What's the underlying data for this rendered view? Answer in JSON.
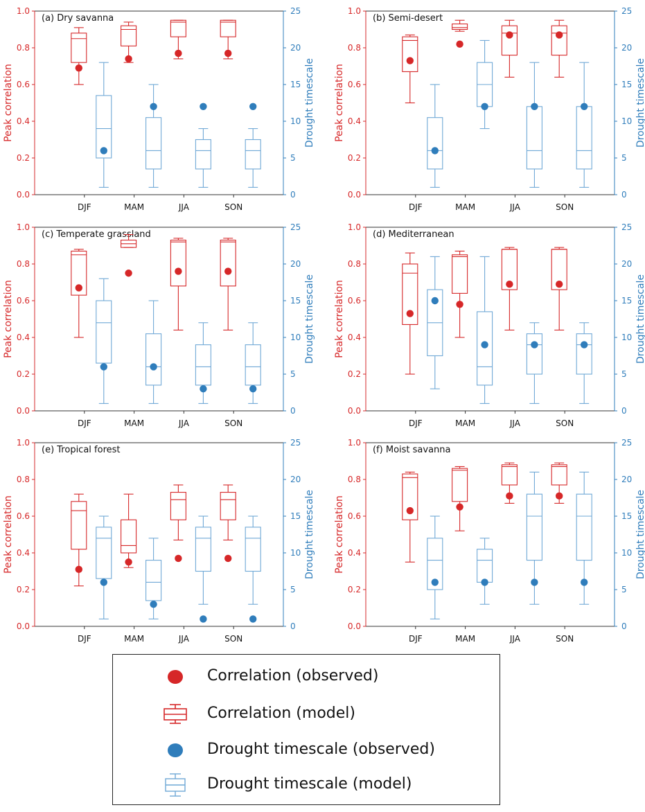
{
  "colors": {
    "correlation": "#d62728",
    "timescale": "#2f7dbb",
    "axis": "#333333"
  },
  "axis_labels": {
    "left": "Peak correlation",
    "right": "Drought timescale"
  },
  "ticks": {
    "left": [
      "0.0",
      "0.2",
      "0.4",
      "0.6",
      "0.8",
      "1.0"
    ],
    "right": [
      "0",
      "5",
      "10",
      "15",
      "20",
      "25"
    ]
  },
  "legend": {
    "corr_obs": "Correlation (observed)",
    "corr_model": "Correlation (model)",
    "ts_obs": "Drought timescale (observed)",
    "ts_model": "Drought timescale (model)"
  },
  "chart_data": [
    {
      "type": "box",
      "title": "(a) Dry savanna",
      "categories": [
        "DJF",
        "MAM",
        "JJA",
        "SON"
      ],
      "ylim_left": [
        0,
        1
      ],
      "ylim_right": [
        0,
        25
      ],
      "correlation_model": [
        {
          "min": 0.6,
          "q1": 0.72,
          "median": 0.85,
          "q3": 0.88,
          "max": 0.91
        },
        {
          "min": 0.72,
          "q1": 0.81,
          "median": 0.9,
          "q3": 0.92,
          "max": 0.94
        },
        {
          "min": 0.74,
          "q1": 0.86,
          "median": 0.94,
          "q3": 0.95,
          "max": 0.95
        },
        {
          "min": 0.74,
          "q1": 0.86,
          "median": 0.94,
          "q3": 0.95,
          "max": 0.95
        }
      ],
      "correlation_observed": [
        0.69,
        0.74,
        0.77,
        0.77
      ],
      "timescale_model": [
        {
          "min": 1,
          "q1": 5,
          "median": 9,
          "q3": 13.5,
          "max": 18
        },
        {
          "min": 1,
          "q1": 3.5,
          "median": 6,
          "q3": 10.5,
          "max": 15
        },
        {
          "min": 1,
          "q1": 3.5,
          "median": 6,
          "q3": 7.5,
          "max": 9
        },
        {
          "min": 1,
          "q1": 3.5,
          "median": 6,
          "q3": 7.5,
          "max": 9
        }
      ],
      "timescale_observed": [
        6,
        12,
        12,
        12
      ]
    },
    {
      "type": "box",
      "title": "(b) Semi-desert",
      "categories": [
        "DJF",
        "MAM",
        "JJA",
        "SON"
      ],
      "ylim_left": [
        0,
        1
      ],
      "ylim_right": [
        0,
        25
      ],
      "correlation_model": [
        {
          "min": 0.5,
          "q1": 0.67,
          "median": 0.84,
          "q3": 0.86,
          "max": 0.87
        },
        {
          "min": 0.89,
          "q1": 0.9,
          "median": 0.91,
          "q3": 0.93,
          "max": 0.95
        },
        {
          "min": 0.64,
          "q1": 0.76,
          "median": 0.88,
          "q3": 0.92,
          "max": 0.95
        },
        {
          "min": 0.64,
          "q1": 0.76,
          "median": 0.88,
          "q3": 0.92,
          "max": 0.95
        }
      ],
      "correlation_observed": [
        0.73,
        0.82,
        0.87,
        0.87
      ],
      "timescale_model": [
        {
          "min": 1,
          "q1": 3.5,
          "median": 6,
          "q3": 10.5,
          "max": 15
        },
        {
          "min": 9,
          "q1": 12,
          "median": 15,
          "q3": 18,
          "max": 21
        },
        {
          "min": 1,
          "q1": 3.5,
          "median": 6,
          "q3": 12,
          "max": 18
        },
        {
          "min": 1,
          "q1": 3.5,
          "median": 6,
          "q3": 12,
          "max": 18
        }
      ],
      "timescale_observed": [
        6,
        12,
        12,
        12
      ]
    },
    {
      "type": "box",
      "title": "(c) Temperate grassland",
      "categories": [
        "DJF",
        "MAM",
        "JJA",
        "SON"
      ],
      "ylim_left": [
        0,
        1
      ],
      "ylim_right": [
        0,
        25
      ],
      "correlation_model": [
        {
          "min": 0.4,
          "q1": 0.63,
          "median": 0.85,
          "q3": 0.87,
          "max": 0.88
        },
        {
          "min": 0.89,
          "q1": 0.89,
          "median": 0.91,
          "q3": 0.93,
          "max": 0.96
        },
        {
          "min": 0.44,
          "q1": 0.68,
          "median": 0.92,
          "q3": 0.93,
          "max": 0.94
        },
        {
          "min": 0.44,
          "q1": 0.68,
          "median": 0.92,
          "q3": 0.93,
          "max": 0.94
        }
      ],
      "correlation_observed": [
        0.67,
        0.75,
        0.76,
        0.76
      ],
      "timescale_model": [
        {
          "min": 1,
          "q1": 6.5,
          "median": 12,
          "q3": 15,
          "max": 18
        },
        {
          "min": 1,
          "q1": 3.5,
          "median": 6,
          "q3": 10.5,
          "max": 15
        },
        {
          "min": 1,
          "q1": 3.5,
          "median": 6,
          "q3": 9,
          "max": 12
        },
        {
          "min": 1,
          "q1": 3.5,
          "median": 6,
          "q3": 9,
          "max": 12
        }
      ],
      "timescale_observed": [
        6,
        6,
        3,
        3
      ]
    },
    {
      "type": "box",
      "title": "(d) Mediterranean",
      "categories": [
        "DJF",
        "MAM",
        "JJA",
        "SON"
      ],
      "ylim_left": [
        0,
        1
      ],
      "ylim_right": [
        0,
        25
      ],
      "correlation_model": [
        {
          "min": 0.2,
          "q1": 0.47,
          "median": 0.75,
          "q3": 0.8,
          "max": 0.86
        },
        {
          "min": 0.4,
          "q1": 0.64,
          "median": 0.84,
          "q3": 0.85,
          "max": 0.87
        },
        {
          "min": 0.44,
          "q1": 0.66,
          "median": 0.88,
          "q3": 0.88,
          "max": 0.89
        },
        {
          "min": 0.44,
          "q1": 0.66,
          "median": 0.88,
          "q3": 0.88,
          "max": 0.89
        }
      ],
      "correlation_observed": [
        0.53,
        0.58,
        0.69,
        0.69
      ],
      "timescale_model": [
        {
          "min": 3,
          "q1": 7.5,
          "median": 12,
          "q3": 16.5,
          "max": 21
        },
        {
          "min": 1,
          "q1": 3.5,
          "median": 6,
          "q3": 13.5,
          "max": 21
        },
        {
          "min": 1,
          "q1": 5,
          "median": 9,
          "q3": 10.5,
          "max": 12
        },
        {
          "min": 1,
          "q1": 5,
          "median": 9,
          "q3": 10.5,
          "max": 12
        }
      ],
      "timescale_observed": [
        15,
        9,
        9,
        9
      ]
    },
    {
      "type": "box",
      "title": "(e) Tropical forest",
      "categories": [
        "DJF",
        "MAM",
        "JJA",
        "SON"
      ],
      "ylim_left": [
        0,
        1
      ],
      "ylim_right": [
        0,
        25
      ],
      "correlation_model": [
        {
          "min": 0.22,
          "q1": 0.42,
          "median": 0.63,
          "q3": 0.68,
          "max": 0.72
        },
        {
          "min": 0.32,
          "q1": 0.4,
          "median": 0.44,
          "q3": 0.58,
          "max": 0.72
        },
        {
          "min": 0.47,
          "q1": 0.58,
          "median": 0.69,
          "q3": 0.73,
          "max": 0.77
        },
        {
          "min": 0.47,
          "q1": 0.58,
          "median": 0.69,
          "q3": 0.73,
          "max": 0.77
        }
      ],
      "correlation_observed": [
        0.31,
        0.35,
        0.37,
        0.37
      ],
      "timescale_model": [
        {
          "min": 1,
          "q1": 6.5,
          "median": 12,
          "q3": 13.5,
          "max": 15
        },
        {
          "min": 1,
          "q1": 3.5,
          "median": 6,
          "q3": 9,
          "max": 12
        },
        {
          "min": 3,
          "q1": 7.5,
          "median": 12,
          "q3": 13.5,
          "max": 15
        },
        {
          "min": 3,
          "q1": 7.5,
          "median": 12,
          "q3": 13.5,
          "max": 15
        }
      ],
      "timescale_observed": [
        6,
        3,
        1,
        1
      ]
    },
    {
      "type": "box",
      "title": "(f) Moist savanna",
      "categories": [
        "DJF",
        "MAM",
        "JJA",
        "SON"
      ],
      "ylim_left": [
        0,
        1
      ],
      "ylim_right": [
        0,
        25
      ],
      "correlation_model": [
        {
          "min": 0.35,
          "q1": 0.58,
          "median": 0.81,
          "q3": 0.83,
          "max": 0.84
        },
        {
          "min": 0.52,
          "q1": 0.68,
          "median": 0.85,
          "q3": 0.86,
          "max": 0.87
        },
        {
          "min": 0.67,
          "q1": 0.77,
          "median": 0.87,
          "q3": 0.88,
          "max": 0.89
        },
        {
          "min": 0.67,
          "q1": 0.77,
          "median": 0.87,
          "q3": 0.88,
          "max": 0.89
        }
      ],
      "correlation_observed": [
        0.63,
        0.65,
        0.71,
        0.71
      ],
      "timescale_model": [
        {
          "min": 1,
          "q1": 5,
          "median": 9,
          "q3": 12,
          "max": 15
        },
        {
          "min": 3,
          "q1": 6,
          "median": 9,
          "q3": 10.5,
          "max": 12
        },
        {
          "min": 3,
          "q1": 9,
          "median": 15,
          "q3": 18,
          "max": 21
        },
        {
          "min": 3,
          "q1": 9,
          "median": 15,
          "q3": 18,
          "max": 21
        }
      ],
      "timescale_observed": [
        6,
        6,
        6,
        6
      ]
    }
  ]
}
